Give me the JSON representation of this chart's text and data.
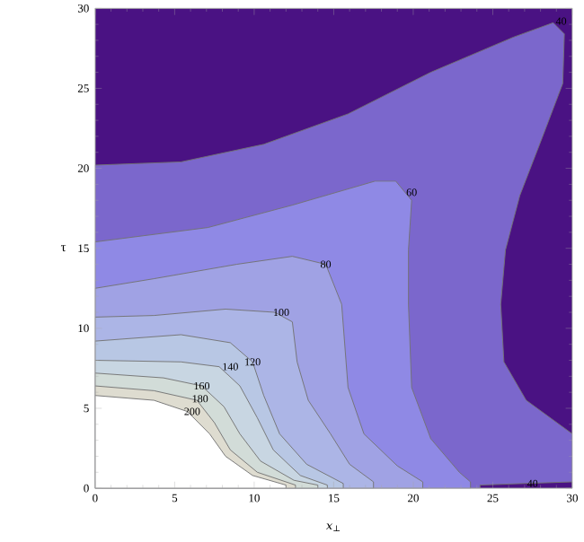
{
  "chart_data": {
    "type": "area",
    "xlabel": "*x*$_{⊥}$",
    "ylabel": "τ",
    "xlim": [
      0,
      30
    ],
    "ylim": [
      0,
      30
    ],
    "xticks": [
      0,
      5,
      10,
      15,
      20,
      25,
      30
    ],
    "yticks": [
      0,
      5,
      10,
      15,
      20,
      25,
      30
    ],
    "series": [
      {
        "color": "#4a1283",
        "x": [
          0,
          30
        ],
        "values": [
          30,
          30
        ]
      },
      {
        "color": "#7b67cc",
        "x": [
          0,
          5.4,
          10.6,
          15.9,
          21.1,
          26.3,
          28.8,
          29.5,
          29.4,
          28.1,
          26.7,
          25.8,
          25.5,
          25.7,
          27.1,
          30,
          30,
          27,
          24.2
        ],
        "values": [
          20.2,
          20.4,
          21.5,
          23.4,
          26.0,
          28.2,
          29.1,
          28.4,
          25.3,
          21.9,
          18.3,
          14.9,
          11.5,
          7.9,
          5.5,
          3.4,
          0.4,
          0.3,
          0.2
        ]
      },
      {
        "color": "#8f89e5",
        "x": [
          0,
          7.1,
          12.4,
          17.6,
          18.9,
          19.9,
          19.7,
          19.7,
          19.9,
          21.1,
          22.9,
          23.6
        ],
        "values": [
          15.4,
          16.3,
          17.7,
          19.2,
          19.2,
          18.0,
          14.9,
          11.5,
          6.3,
          3.1,
          1.0,
          0.4
        ]
      },
      {
        "color": "#a0a2e4",
        "x": [
          0,
          3.7,
          8.9,
          12.4,
          14.5,
          15.5,
          15.9,
          16.9,
          19,
          20.6
        ],
        "values": [
          12.5,
          13.1,
          14.0,
          14.5,
          14.0,
          11.5,
          6.3,
          3.4,
          1.4,
          0.4
        ]
      },
      {
        "color": "#acb5e6",
        "x": [
          0,
          3.7,
          8.2,
          11.3,
          12.4,
          12.7,
          13.4,
          14.8,
          16,
          17.5
        ],
        "values": [
          10.7,
          10.8,
          11.2,
          11.0,
          10.4,
          7.9,
          5.5,
          3.4,
          1.5,
          0.4
        ]
      },
      {
        "color": "#b8c7e4",
        "x": [
          0,
          5.4,
          8.5,
          9.9,
          10.6,
          11.6,
          13.3,
          15.6
        ],
        "values": [
          9.2,
          9.6,
          9.1,
          7.9,
          5.8,
          3.4,
          1.5,
          0.3
        ]
      },
      {
        "color": "#c8d6e2",
        "x": [
          0,
          5.4,
          7.8,
          9.1,
          10.2,
          11.2,
          12.9,
          14.6
        ],
        "values": [
          8.0,
          7.9,
          7.6,
          6.4,
          4.4,
          2.4,
          0.8,
          0.2
        ]
      },
      {
        "color": "#d2dcd8",
        "x": [
          0,
          4.3,
          6.7,
          8.1,
          9.1,
          10.4,
          12.5,
          14.0
        ],
        "values": [
          7.2,
          6.9,
          6.4,
          5.1,
          3.4,
          1.7,
          0.5,
          0.2
        ]
      },
      {
        "color": "#dedcd0",
        "x": [
          0,
          3.7,
          6.4,
          7.5,
          8.5,
          10.2,
          12.6
        ],
        "values": [
          6.4,
          6.1,
          5.5,
          4.1,
          2.4,
          1.0,
          0.2
        ]
      },
      {
        "color": "#ffffff",
        "x": [
          0,
          3.7,
          5.8,
          7.2,
          8.2,
          9.9,
          12.0
        ],
        "values": [
          5.8,
          5.5,
          4.8,
          3.4,
          2.0,
          0.8,
          0.2
        ]
      }
    ],
    "annotations": [
      {
        "text": "40",
        "x": 29.3,
        "y": 29.2
      },
      {
        "text": "60",
        "x": 19.9,
        "y": 18.5
      },
      {
        "text": "80",
        "x": 14.5,
        "y": 14.0
      },
      {
        "text": "100",
        "x": 11.7,
        "y": 11.0
      },
      {
        "text": "120",
        "x": 9.9,
        "y": 7.9
      },
      {
        "text": "140",
        "x": 8.5,
        "y": 7.6
      },
      {
        "text": "160",
        "x": 6.7,
        "y": 6.4
      },
      {
        "text": "180",
        "x": 6.6,
        "y": 5.6
      },
      {
        "text": "200",
        "x": 6.1,
        "y": 4.8
      },
      {
        "text": "40",
        "x": 27.5,
        "y": 0.3
      }
    ]
  }
}
